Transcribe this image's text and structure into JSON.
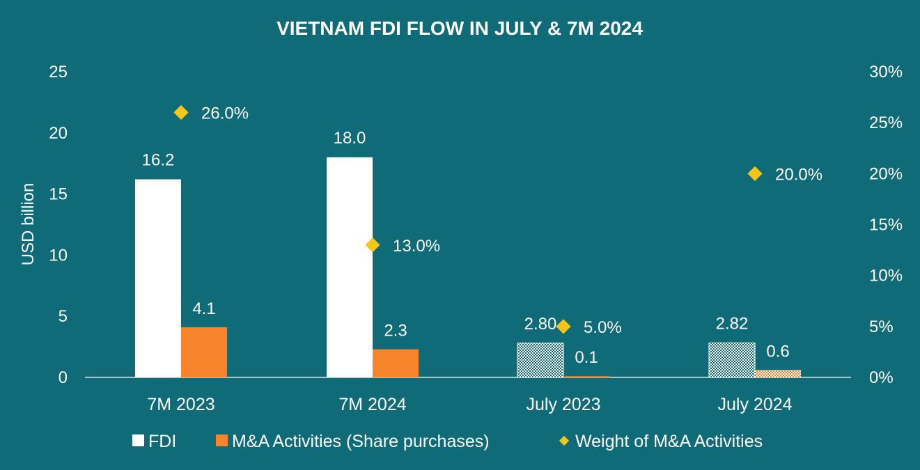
{
  "chart_data": {
    "type": "bar",
    "title": "VIETNAM FDI FLOW IN JULY & 7M 2024",
    "ylabel": "USD billion",
    "ylim": [
      0,
      25
    ],
    "y_ticks": [
      "0",
      "5",
      "10",
      "15",
      "20",
      "25"
    ],
    "y2lim": [
      0,
      30
    ],
    "y2_ticks": [
      "0%",
      "5%",
      "10%",
      "15%",
      "20%",
      "25%",
      "30%"
    ],
    "categories": [
      "7M 2023",
      "7M 2024",
      "July 2023",
      "July 2024"
    ],
    "series": [
      {
        "name": "FDI",
        "type": "bar",
        "axis": "left",
        "values": [
          16.2,
          18.0,
          2.8,
          2.82
        ],
        "labels": [
          "16.2",
          "18.0",
          "2.80",
          "2.82"
        ],
        "patterned": [
          false,
          false,
          true,
          true
        ]
      },
      {
        "name": "M&A Activities (Share purchases)",
        "type": "bar",
        "axis": "left",
        "values": [
          4.1,
          2.3,
          0.1,
          0.6
        ],
        "labels": [
          "4.1",
          "2.3",
          "0.1",
          "0.6"
        ],
        "patterned": [
          false,
          false,
          false,
          true
        ]
      },
      {
        "name": "Weight of M&A Activities",
        "type": "scatter",
        "axis": "right",
        "values": [
          26.0,
          13.0,
          5.0,
          20.0
        ],
        "labels": [
          "26.0%",
          "13.0%",
          "5.0%",
          "20.0%"
        ]
      }
    ],
    "grid": false,
    "legend_position": "bottom",
    "colors": {
      "background": "#0f6b78",
      "fdi": "#ffffff",
      "ma": "#f7832a",
      "weight": "#f5c518",
      "pattern_ink": "#0f6b78",
      "axis_line": "#ffffff"
    }
  }
}
